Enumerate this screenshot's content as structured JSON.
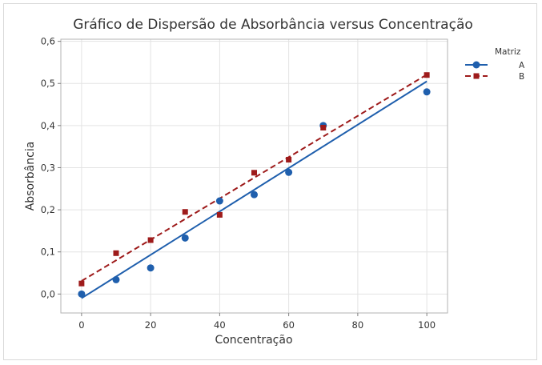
{
  "chart_data": {
    "type": "scatter",
    "title": "Gráfico de Dispersão de Absorbância versus Concentração",
    "xlabel": "Concentração",
    "ylabel": "Absorbância",
    "xlim": [
      -6,
      106
    ],
    "ylim": [
      -0.045,
      0.605
    ],
    "x_ticks": [
      0,
      20,
      40,
      60,
      80,
      100
    ],
    "x_tick_labels": [
      "0",
      "20",
      "40",
      "60",
      "80",
      "100"
    ],
    "y_ticks": [
      0.0,
      0.1,
      0.2,
      0.3,
      0.4,
      0.5,
      0.6
    ],
    "y_tick_labels": [
      "0,0",
      "0,1",
      "0,2",
      "0,3",
      "0,4",
      "0,5",
      "0,6"
    ],
    "grid": true,
    "legend": {
      "title": "Matriz",
      "placement": "right"
    },
    "series": [
      {
        "name": "A",
        "marker": "circle",
        "line_style": "solid",
        "color": "#1f5fad",
        "x": [
          0,
          10,
          20,
          30,
          40,
          50,
          60,
          70,
          100
        ],
        "y": [
          0.0,
          0.034,
          0.062,
          0.133,
          0.221,
          0.236,
          0.289,
          0.4,
          0.48
        ],
        "fit_line": {
          "x": [
            0,
            100
          ],
          "y": [
            -0.01,
            0.505
          ]
        }
      },
      {
        "name": "B",
        "marker": "square",
        "line_style": "dashed",
        "color": "#9e1b1b",
        "x": [
          0,
          10,
          20,
          30,
          40,
          50,
          60,
          70,
          100
        ],
        "y": [
          0.025,
          0.097,
          0.128,
          0.195,
          0.188,
          0.288,
          0.319,
          0.395,
          0.52
        ],
        "fit_line": {
          "x": [
            0,
            100
          ],
          "y": [
            0.031,
            0.521
          ]
        }
      }
    ]
  }
}
